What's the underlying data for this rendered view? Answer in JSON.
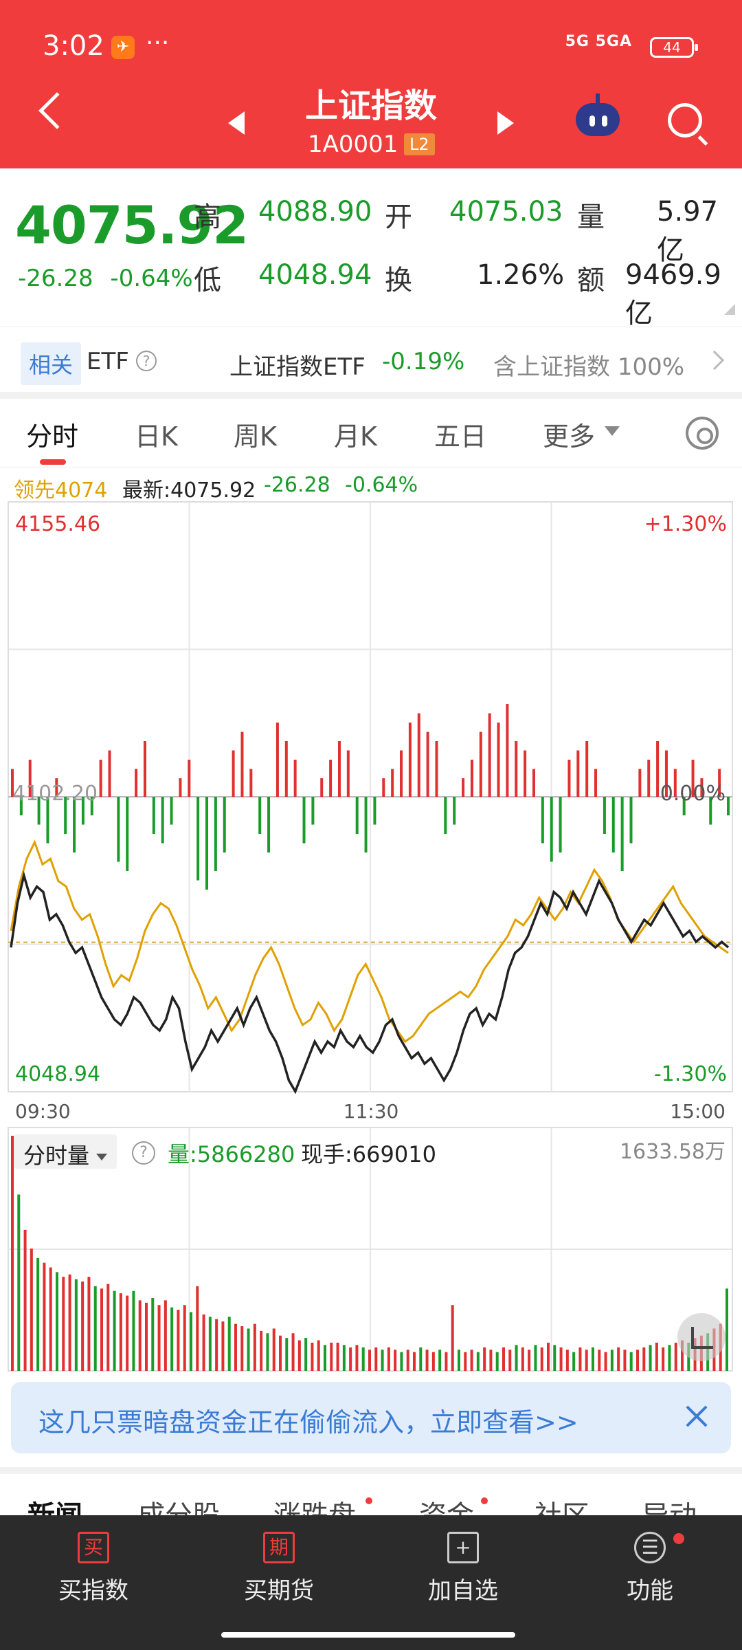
{
  "status": {
    "time": "3:02",
    "app_glyph": "✈",
    "dots": "···",
    "network": "5G 5GA",
    "battery": "44"
  },
  "header": {
    "title": "上证指数",
    "code": "1A0001",
    "level": "L2"
  },
  "quote": {
    "price": "4075.92",
    "change": "-26.28",
    "change_pct": "-0.64%",
    "high_label": "高",
    "high": "4088.90",
    "open_label": "开",
    "open": "4075.03",
    "volume_label": "量",
    "volume": "5.97亿",
    "low_label": "低",
    "low": "4048.94",
    "turnover_label": "换",
    "turnover": "1.26%",
    "amount_label": "额",
    "amount": "9469.9亿"
  },
  "etf": {
    "tag": "相关",
    "label": "ETF",
    "help": "?",
    "name": "上证指数ETF",
    "pct": "-0.19%",
    "contains": "含上证指数 100%"
  },
  "tabs": [
    {
      "label": "分时"
    },
    {
      "label": "日K"
    },
    {
      "label": "周K"
    },
    {
      "label": "月K"
    },
    {
      "label": "五日"
    },
    {
      "label": "更多"
    }
  ],
  "legend": {
    "lead": "领先4074",
    "latest": "最新:4075.92",
    "change": "-26.28",
    "pct": "-0.64%"
  },
  "colors": {
    "red": "#e03030",
    "green": "#1a9b2a",
    "gold": "#e0a000",
    "line": "#222222"
  },
  "chart_data": {
    "type": "line",
    "y_range": [
      4048.94,
      4155.46
    ],
    "y_top_label": "4155.46",
    "y_bottom_label": "4048.94",
    "pct_top": "+1.30%",
    "pct_bottom": "-1.30%",
    "pct_mid": "0.00%",
    "mid_label": "4102.20",
    "x_ticks": [
      "09:30",
      "11:30",
      "15:00"
    ],
    "price_series": [
      4075,
      4083,
      4088,
      4084,
      4086,
      4085,
      4080,
      4081,
      4079,
      4076,
      4074,
      4075,
      4072,
      4069,
      4066,
      4064,
      4062,
      4061,
      4063,
      4066,
      4065,
      4063,
      4061,
      4060,
      4062,
      4066,
      4064,
      4058,
      4053,
      4055,
      4057,
      4060,
      4058,
      4060,
      4062,
      4064,
      4061,
      4064,
      4066,
      4063,
      4060,
      4058,
      4055,
      4051,
      4049,
      4052,
      4055,
      4058,
      4056,
      4058,
      4057,
      4060,
      4058,
      4057,
      4059,
      4057,
      4056,
      4058,
      4061,
      4062,
      4059,
      4057,
      4055,
      4056,
      4054,
      4055,
      4053,
      4051,
      4053,
      4056,
      4060,
      4063,
      4064,
      4061,
      4063,
      4062,
      4066,
      4071,
      4074,
      4075,
      4077,
      4080,
      4083,
      4081,
      4085,
      4084,
      4082,
      4085,
      4083,
      4081,
      4084,
      4087,
      4085,
      4083,
      4080,
      4078,
      4076,
      4078,
      4080,
      4079,
      4081,
      4083,
      4081,
      4079,
      4077,
      4078,
      4076,
      4077,
      4076,
      4075,
      4076,
      4075
    ],
    "lead_series": [
      4078,
      4086,
      4091,
      4094,
      4090,
      4091,
      4087,
      4086,
      4082,
      4080,
      4081,
      4077,
      4072,
      4068,
      4070,
      4069,
      4073,
      4078,
      4081,
      4083,
      4082,
      4079,
      4075,
      4071,
      4068,
      4064,
      4066,
      4063,
      4060,
      4062,
      4066,
      4070,
      4073,
      4075,
      4072,
      4068,
      4064,
      4061,
      4062,
      4065,
      4063,
      4060,
      4062,
      4066,
      4070,
      4072,
      4069,
      4066,
      4062,
      4060,
      4058,
      4059,
      4061,
      4063,
      4064,
      4065,
      4066,
      4067,
      4066,
      4068,
      4071,
      4073,
      4075,
      4077,
      4080,
      4079,
      4081,
      4084,
      4082,
      4080,
      4082,
      4085,
      4083,
      4086,
      4089,
      4087,
      4084,
      4080,
      4078,
      4076,
      4078,
      4080,
      4082,
      4084,
      4086,
      4083,
      4081,
      4079,
      4077,
      4076,
      4075,
      4074
    ],
    "flow_bars": [
      3,
      -2,
      4,
      -3,
      -5,
      2,
      -4,
      -6,
      -3,
      -2,
      4,
      5,
      -7,
      -8,
      3,
      6,
      -4,
      -5,
      -3,
      2,
      4,
      -9,
      -10,
      -8,
      -6,
      5,
      7,
      3,
      -4,
      -6,
      8,
      6,
      4,
      -5,
      -3,
      2,
      4,
      6,
      5,
      -4,
      -6,
      -3,
      2,
      3,
      5,
      8,
      9,
      7,
      6,
      -4,
      -3,
      2,
      4,
      7,
      9,
      8,
      10,
      6,
      5,
      3,
      -5,
      -7,
      -6,
      4,
      5,
      6,
      3,
      -4,
      -6,
      -8,
      -5,
      3,
      4,
      6,
      5,
      3,
      -2,
      4,
      2,
      -3,
      3,
      -2
    ],
    "volume_panel": {
      "title": "分时量",
      "volume": "量:5866280",
      "current": "现手:669010",
      "max_label": "1633.58万"
    },
    "volume_bars": [
      100,
      75,
      60,
      52,
      48,
      46,
      44,
      42,
      40,
      41,
      39,
      38,
      40,
      36,
      35,
      37,
      34,
      33,
      32,
      34,
      30,
      29,
      31,
      28,
      30,
      27,
      26,
      28,
      25,
      36,
      24,
      23,
      22,
      21,
      23,
      20,
      19,
      18,
      20,
      17,
      16,
      18,
      15,
      14,
      16,
      13,
      14,
      12,
      13,
      11,
      12,
      12,
      11,
      10,
      11,
      10,
      9,
      10,
      9,
      10,
      9,
      8,
      9,
      8,
      10,
      9,
      8,
      9,
      8,
      28,
      9,
      8,
      9,
      8,
      10,
      9,
      8,
      10,
      9,
      11,
      10,
      9,
      11,
      10,
      12,
      11,
      10,
      9,
      8,
      10,
      9,
      10,
      9,
      8,
      9,
      10,
      9,
      8,
      9,
      10,
      11,
      12,
      10,
      11,
      12,
      13,
      12,
      14,
      15,
      16,
      18,
      20,
      35
    ]
  },
  "banner": {
    "text": "这几只票暗盘资金正在偷偷流入，立即查看>>"
  },
  "news_tabs": [
    "新闻",
    "成分股",
    "涨跌盘",
    "资金",
    "社区",
    "异动"
  ],
  "bottom_nav": [
    {
      "icon": "买",
      "label": "买指数"
    },
    {
      "icon": "期",
      "label": "买期货"
    },
    {
      "icon": "+",
      "label": "加自选"
    },
    {
      "icon": "☰",
      "label": "功能"
    }
  ]
}
